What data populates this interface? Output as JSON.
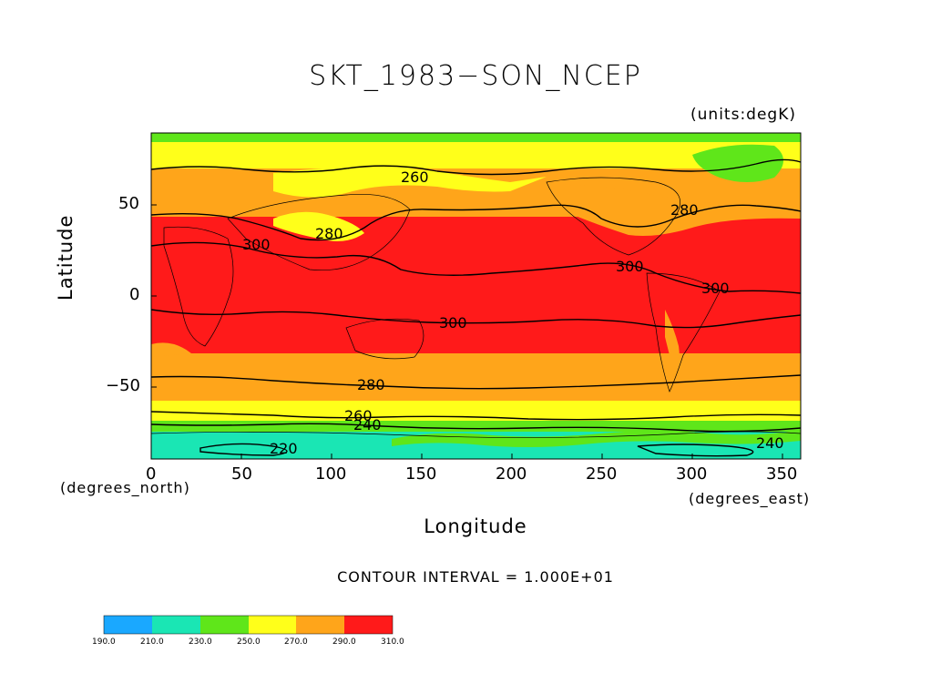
{
  "title": "SKT_1983−SON_NCEP",
  "units_label": "(units:degK)",
  "y_axis": {
    "label": "Latitude",
    "ticks": [
      "50",
      "0",
      "−50"
    ],
    "tick_values": [
      50,
      0,
      -50
    ],
    "unit_note": "(degrees_north)",
    "range": [
      -90,
      90
    ]
  },
  "x_axis": {
    "label": "Longitude",
    "ticks": [
      "0",
      "50",
      "100",
      "150",
      "200",
      "250",
      "300",
      "350"
    ],
    "tick_values": [
      0,
      50,
      100,
      150,
      200,
      250,
      300,
      350
    ],
    "unit_note": "(degrees_east)",
    "range": [
      0,
      360
    ]
  },
  "contour_interval_text": "CONTOUR INTERVAL = 1.000E+01",
  "contour_labels": [
    "260",
    "280",
    "300",
    "280",
    "300",
    "300",
    "300",
    "280",
    "260",
    "240",
    "220",
    "240"
  ],
  "colorbar": {
    "labels": [
      "190.0",
      "210.0",
      "230.0",
      "250.0",
      "270.0",
      "290.0",
      "310.0"
    ],
    "colors": [
      "#1aa8ff",
      "#1ae6b4",
      "#5fe61a",
      "#ffff1a",
      "#ffa51a",
      "#ff1a1a"
    ]
  },
  "map_colors": {
    "band_210_230": "#1ae6b4",
    "band_230_250": "#5fe61a",
    "band_250_270": "#ffff1a",
    "band_270_290": "#ffa51a",
    "band_290_310": "#ff1a1a"
  }
}
